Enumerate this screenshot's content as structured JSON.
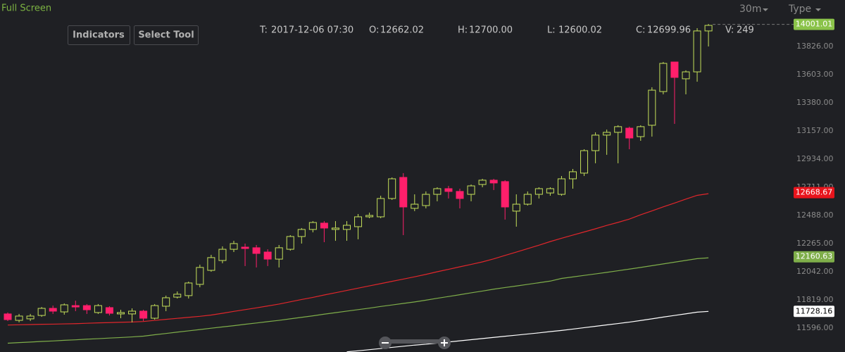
{
  "toolbar": {
    "full_screen": "Full Screen",
    "interval": "30m",
    "type": "Type",
    "indicators": "Indicators",
    "select_tool": "Select Tool"
  },
  "ohlc_info": [
    {
      "label": "T:",
      "value": "2017-12-06 07:30"
    },
    {
      "label": "O:",
      "value": "12662.02"
    },
    {
      "label": "H:",
      "value": "12700.00"
    },
    {
      "label": "L:",
      "value": "12600.02"
    },
    {
      "label": "C:",
      "value": "12699.96"
    },
    {
      "label": "V:",
      "value": "249"
    }
  ],
  "chart_data": {
    "type": "candlestick",
    "up_color": "#c5e05a",
    "down_color": "#ff1f6b",
    "ylim": [
      11406.45,
      14193.95
    ],
    "yticks": [
      {
        "value": 11596,
        "label": "11596.00"
      },
      {
        "value": 11819,
        "label": "11819.00"
      },
      {
        "value": 12042,
        "label": "12042.00"
      },
      {
        "value": 12265,
        "label": "12265.00"
      },
      {
        "value": 12488,
        "label": "12488.00"
      },
      {
        "value": 12711,
        "label": "12711.00"
      },
      {
        "value": 12934,
        "label": "12934.00"
      },
      {
        "value": 13157,
        "label": "13157.00"
      },
      {
        "value": 13380,
        "label": "13380.00"
      },
      {
        "value": 13603,
        "label": "13603.00"
      },
      {
        "value": 13826,
        "label": "13826.00"
      }
    ],
    "candles": {
      "open": [
        11708,
        11657,
        11669,
        11696,
        11752,
        11724,
        11774,
        11774,
        11719,
        11758,
        11708,
        11708,
        11730,
        11674,
        11769,
        11841,
        11853,
        11942,
        12053,
        12131,
        12220,
        12237,
        12232,
        12198,
        12142,
        12220,
        12321,
        12377,
        12427,
        12377,
        12377,
        12399,
        12477,
        12477,
        12622,
        12789,
        12544,
        12566,
        12655,
        12700,
        12678,
        12655,
        12733,
        12767,
        12756,
        12522,
        12577,
        12655,
        12666,
        12655,
        12778,
        12823,
        13001,
        13124,
        13146,
        13179,
        13112,
        13202,
        13469,
        13703,
        13570,
        13625,
        13949
      ],
      "high": [
        11719,
        11708,
        11708,
        11763,
        11774,
        11791,
        11813,
        11786,
        11786,
        11769,
        11741,
        11752,
        11741,
        11786,
        11853,
        11886,
        11964,
        12098,
        12176,
        12243,
        12287,
        12265,
        12254,
        12220,
        12254,
        12332,
        12388,
        12443,
        12443,
        12443,
        12443,
        12499,
        12510,
        12644,
        12789,
        12823,
        12655,
        12678,
        12711,
        12722,
        12700,
        12733,
        12778,
        12778,
        12767,
        12655,
        12678,
        12711,
        12711,
        12800,
        12856,
        13012,
        13146,
        13168,
        13202,
        13191,
        13202,
        13503,
        13703,
        13703,
        13637,
        13971,
        14004
      ],
      "low": [
        11652,
        11641,
        11652,
        11685,
        11708,
        11702,
        11730,
        11708,
        11708,
        11696,
        11674,
        11641,
        11652,
        11663,
        11730,
        11830,
        11830,
        11919,
        12042,
        12109,
        12198,
        12087,
        12076,
        12087,
        12076,
        12209,
        12265,
        12354,
        12276,
        12287,
        12287,
        12299,
        12466,
        12466,
        12611,
        12332,
        12522,
        12544,
        12600,
        12622,
        12544,
        12600,
        12711,
        12689,
        12455,
        12399,
        12566,
        12622,
        12644,
        12644,
        12700,
        12800,
        12901,
        12968,
        12901,
        13012,
        13079,
        13112,
        13447,
        13213,
        13447,
        13547,
        13826
      ],
      "close": [
        11663,
        11691,
        11691,
        11752,
        11730,
        11780,
        11763,
        11741,
        11774,
        11713,
        11719,
        11730,
        11674,
        11774,
        11836,
        11864,
        11953,
        12076,
        12154,
        12220,
        12265,
        12226,
        12187,
        12142,
        12232,
        12321,
        12377,
        12432,
        12388,
        12388,
        12410,
        12477,
        12488,
        12622,
        12778,
        12555,
        12577,
        12655,
        12700,
        12678,
        12622,
        12722,
        12767,
        12745,
        12555,
        12577,
        12655,
        12700,
        12700,
        12778,
        12834,
        13001,
        13124,
        13146,
        13191,
        13101,
        13191,
        13480,
        13692,
        13581,
        13625,
        13949,
        13993
      ]
    },
    "series": [
      {
        "color": "#e0262b",
        "values": [
          11620,
          11622,
          11624,
          11626,
          11627,
          11629,
          11631,
          11634,
          11637,
          11639,
          11642,
          11644,
          11648,
          11657,
          11665,
          11673,
          11681,
          11689,
          11699,
          11713,
          11728,
          11742,
          11756,
          11771,
          11786,
          11804,
          11822,
          11839,
          11858,
          11876,
          11894,
          11912,
          11930,
          11948,
          11966,
          11984,
          12002,
          12021,
          12042,
          12061,
          12081,
          12100,
          12120,
          12144,
          12171,
          12198,
          12225,
          12252,
          12281,
          12307,
          12332,
          12357,
          12382,
          12409,
          12433,
          12459,
          12493,
          12524,
          12556,
          12586,
          12617,
          12647,
          12660
        ]
      },
      {
        "color": "#7fae4a",
        "values": [
          11476,
          11481,
          11485,
          11490,
          11494,
          11499,
          11503,
          11508,
          11512,
          11517,
          11521,
          11526,
          11532,
          11543,
          11553,
          11564,
          11574,
          11584,
          11595,
          11605,
          11615,
          11626,
          11636,
          11647,
          11657,
          11669,
          11681,
          11693,
          11706,
          11718,
          11730,
          11742,
          11754,
          11767,
          11779,
          11791,
          11803,
          11817,
          11832,
          11846,
          11860,
          11875,
          11889,
          11904,
          11917,
          11929,
          11942,
          11955,
          11968,
          11989,
          12001,
          12013,
          12025,
          12037,
          12050,
          12063,
          12076,
          12090,
          12104,
          12118,
          12132,
          12146,
          12152
        ]
      },
      {
        "color": "#ffffff",
        "values": [
          null,
          null,
          null,
          null,
          null,
          null,
          null,
          null,
          null,
          null,
          null,
          null,
          null,
          null,
          null,
          null,
          null,
          null,
          null,
          null,
          null,
          null,
          null,
          null,
          null,
          null,
          null,
          null,
          null,
          null,
          11408,
          11416,
          11425,
          11434,
          11443,
          11452,
          11461,
          11468,
          11477,
          11486,
          11495,
          11504,
          11513,
          11522,
          11531,
          11540,
          11549,
          11558,
          11568,
          11577,
          11588,
          11599,
          11610,
          11621,
          11632,
          11643,
          11656,
          11669,
          11683,
          11696,
          11709,
          11722,
          11728
        ]
      }
    ],
    "price_markers": [
      {
        "value": 14001.01,
        "color": "#8bc34a",
        "text_color": "#ffffff"
      },
      {
        "value": 12668.67,
        "color": "#e8141c",
        "text_color": "#ffffff"
      },
      {
        "value": 12160.63,
        "color": "#7fae4a",
        "text_color": "#ffffff"
      },
      {
        "value": 11728.16,
        "color": "#ffffff",
        "text_color": "#000000"
      }
    ]
  }
}
